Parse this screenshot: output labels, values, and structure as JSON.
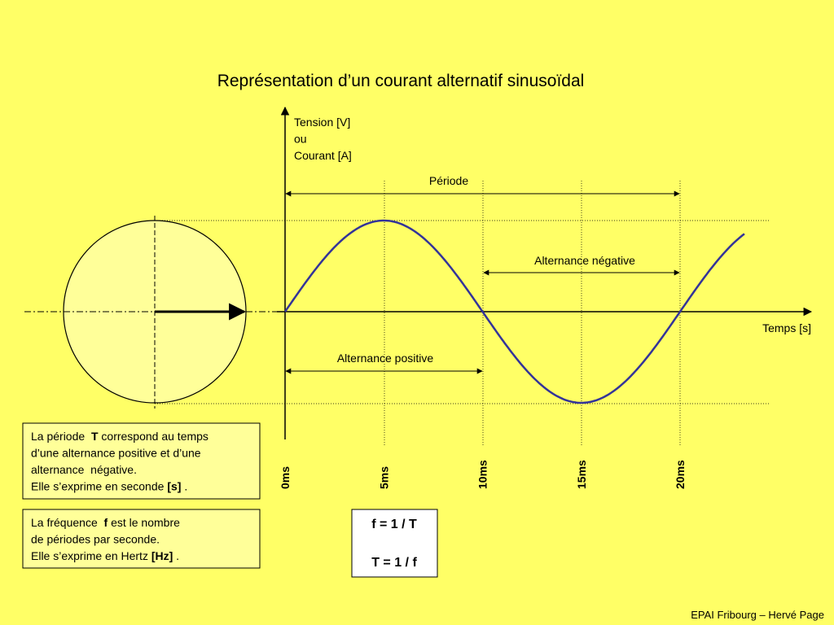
{
  "title": "Représentation d’un courant alternatif sinusoïdal",
  "y_axis_label": [
    "Tension [V]",
    "ou",
    "Courant [A]"
  ],
  "x_axis_label": "Temps [s]",
  "annotations": {
    "period": "Période",
    "negative": "Alternance négative",
    "positive": "Alternance positive"
  },
  "ticks": [
    "0ms",
    "5ms",
    "10ms",
    "15ms",
    "20ms"
  ],
  "box_period": [
    [
      {
        "text": "La période  "
      },
      {
        "text": "T",
        "bold": true
      },
      {
        "text": " correspond au temps"
      }
    ],
    [
      {
        "text": "d’une alternance positive et d’une"
      }
    ],
    [
      {
        "text": "alternance  négative."
      }
    ],
    [
      {
        "text": "Elle s’exprime en seconde "
      },
      {
        "text": "[s]",
        "bold": true
      },
      {
        "text": " ."
      }
    ]
  ],
  "box_frequency": [
    [
      {
        "text": "La fréquence  "
      },
      {
        "text": "f",
        "bold": true
      },
      {
        "text": " est le nombre"
      }
    ],
    [
      {
        "text": "de périodes par seconde."
      }
    ],
    [
      {
        "text": "Elle s’exprime en Hertz "
      },
      {
        "text": "[Hz]",
        "bold": true
      },
      {
        "text": " ."
      }
    ]
  ],
  "formulas": [
    "f = 1 / T",
    "T = 1 / f"
  ],
  "footer": "EPAI Fribourg – Hervé Page"
}
